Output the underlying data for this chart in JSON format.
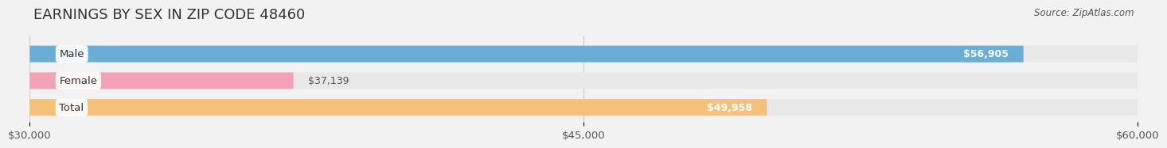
{
  "title": "EARNINGS BY SEX IN ZIP CODE 48460",
  "source": "Source: ZipAtlas.com",
  "categories": [
    "Male",
    "Female",
    "Total"
  ],
  "values": [
    56905,
    37139,
    49958
  ],
  "bar_colors": [
    "#6aaed6",
    "#f4a0b5",
    "#f5c07a"
  ],
  "value_labels": [
    "$56,905",
    "$37,139",
    "$49,958"
  ],
  "value_label_inside": [
    true,
    false,
    true
  ],
  "xmin": 30000,
  "xmax": 60000,
  "xticks": [
    30000,
    45000,
    60000
  ],
  "xtick_labels": [
    "$30,000",
    "$45,000",
    "$60,000"
  ],
  "background_color": "#f2f2f2",
  "bar_bg_color": "#e8e8e8",
  "title_fontsize": 13,
  "tick_fontsize": 9.5,
  "label_fontsize": 9.5,
  "value_fontsize": 9
}
